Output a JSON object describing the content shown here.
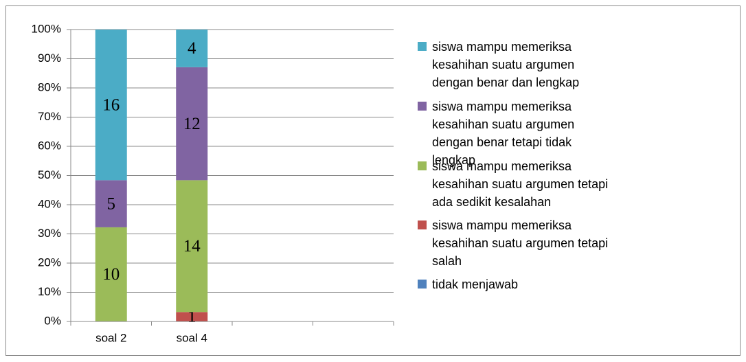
{
  "chart_data": {
    "type": "bar",
    "stacked": "percent",
    "categories": [
      "soal 2",
      "soal 4",
      null,
      null
    ],
    "series": [
      {
        "name": "tidak menjawab",
        "color": "#4f81bd",
        "values": [
          0,
          0,
          null,
          null
        ]
      },
      {
        "name": "siswa mampu memeriksa kesahihan suatu argumen tetapi salah",
        "color": "#c0504d",
        "values": [
          0,
          1,
          null,
          null
        ]
      },
      {
        "name": "siswa mampu memeriksa kesahihan suatu argumen tetapi ada sedikit kesalahan",
        "color": "#9bbb59",
        "values": [
          10,
          14,
          null,
          null
        ]
      },
      {
        "name": "siswa mampu memeriksa kesahihan suatu argumen dengan benar tetapi tidak lengkap",
        "color": "#8064a2",
        "values": [
          5,
          12,
          null,
          null
        ]
      },
      {
        "name": "siswa mampu memeriksa kesahihan suatu argumen dengan benar dan lengkap",
        "color": "#4bacc6",
        "values": [
          16,
          4,
          null,
          null
        ]
      }
    ],
    "ylim": [
      0,
      100
    ],
    "yticks": [
      {
        "value": 0,
        "label": "0%"
      },
      {
        "value": 10,
        "label": "10%"
      },
      {
        "value": 20,
        "label": "20%"
      },
      {
        "value": 30,
        "label": "30%"
      },
      {
        "value": 40,
        "label": "40%"
      },
      {
        "value": 50,
        "label": "50%"
      },
      {
        "value": 60,
        "label": "60%"
      },
      {
        "value": 70,
        "label": "70%"
      },
      {
        "value": 80,
        "label": "80%"
      },
      {
        "value": 90,
        "label": "90%"
      },
      {
        "value": 100,
        "label": "100%"
      }
    ],
    "grid": true,
    "legend": "right"
  }
}
